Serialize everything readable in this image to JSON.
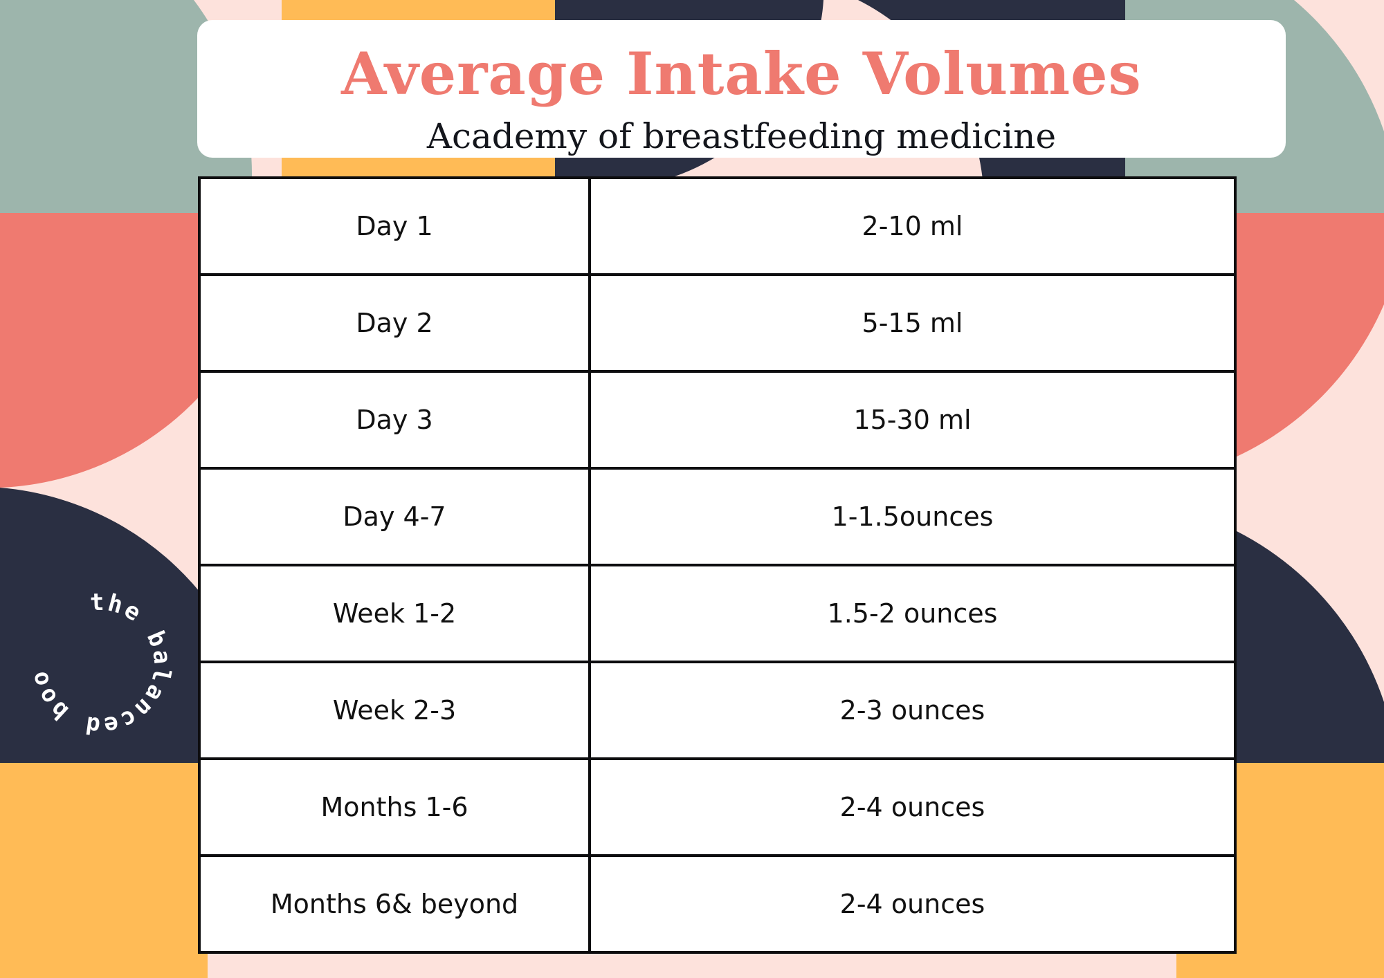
{
  "header": {
    "title": "Average Intake Volumes",
    "subtitle": "Academy of breastfeeding medicine"
  },
  "table": {
    "rows": [
      {
        "period": "Day 1",
        "volume": "2-10 ml"
      },
      {
        "period": "Day 2",
        "volume": "5-15 ml"
      },
      {
        "period": "Day 3",
        "volume": "15-30 ml"
      },
      {
        "period": "Day 4-7",
        "volume": "1-1.5ounces"
      },
      {
        "period": "Week 1-2",
        "volume": "1.5-2 ounces"
      },
      {
        "period": "Week 2-3",
        "volume": "2-3 ounces"
      },
      {
        "period": "Months 1-6",
        "volume": "2-4 ounces"
      },
      {
        "period": "Months 6& beyond",
        "volume": "2-4 ounces"
      }
    ]
  },
  "logo": {
    "text": "the balanced boob"
  },
  "colors": {
    "title": "#ef7a70",
    "sage": "#9db5ac",
    "coral": "#ef7a70",
    "navy": "#2a2f42",
    "mustard": "#ffbb56",
    "blush": "#fde2dc"
  }
}
